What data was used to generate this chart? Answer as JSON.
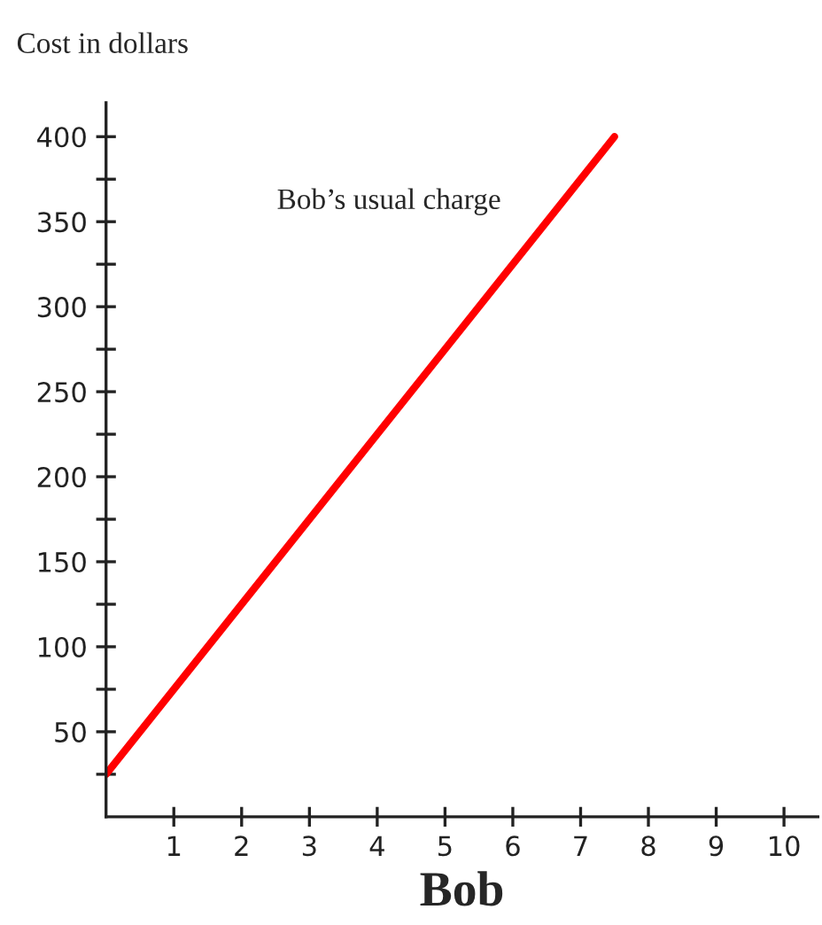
{
  "chart_data": {
    "type": "line",
    "xlabel": "Bob",
    "ylabel": "Cost in dollars",
    "annotations": [
      "Bob’s usual charge"
    ],
    "x": [
      0,
      7.5
    ],
    "series": [
      {
        "color": "#ff0000",
        "values": [
          25,
          400
        ]
      }
    ],
    "xlim": [
      0,
      10.5
    ],
    "ylim": [
      0,
      420
    ],
    "xticks": [
      1,
      2,
      3,
      4,
      5,
      6,
      7,
      8,
      9,
      10
    ],
    "yticks": [
      {
        "value": 25,
        "label": null
      },
      50,
      {
        "value": 75,
        "label": null
      },
      100,
      {
        "value": 125,
        "label": null
      },
      150,
      {
        "value": 175,
        "label": null
      },
      200,
      {
        "value": 225,
        "label": null
      },
      250,
      {
        "value": 275,
        "label": null
      },
      300,
      {
        "value": 325,
        "label": null
      },
      350,
      {
        "value": 375,
        "label": null
      },
      400
    ],
    "grid": false,
    "legend": false,
    "marker": "none",
    "line_style": "solid"
  }
}
